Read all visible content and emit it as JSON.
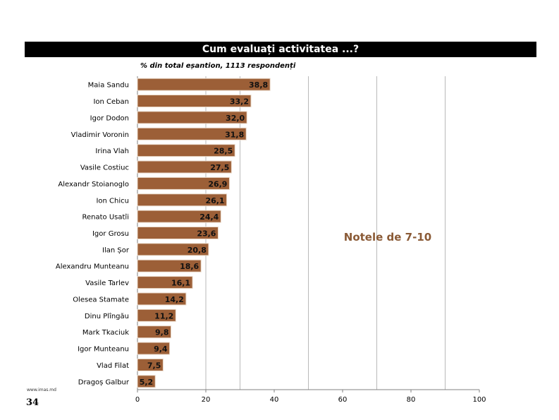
{
  "page": {
    "footer_url": "www.imas.md",
    "page_number": "34"
  },
  "chart_data": {
    "type": "bar",
    "orientation": "horizontal",
    "title": "Cum evaluați activitatea ...?",
    "subtitle": "% din total eșantion, 1113 respondenți",
    "annotation": "Notele de 7-10",
    "categories": [
      "Maia Sandu",
      "Ion Ceban",
      "Igor Dodon",
      "Vladimir Voronin",
      "Irina Vlah",
      "Vasile Costiuc",
      "Alexandr Stoianoglo",
      "Ion Chicu",
      "Renato Usatîi",
      "Igor Grosu",
      "Ilan Șor",
      "Alexandru Munteanu",
      "Vasile Tarlev",
      "Olesea Stamate",
      "Dinu Plîngău",
      "Mark Tkaciuk",
      "Igor Munteanu",
      "Vlad Filat",
      "Dragoș Galbur"
    ],
    "values": [
      38.8,
      33.2,
      32.0,
      31.8,
      28.5,
      27.5,
      26.9,
      26.1,
      24.4,
      23.6,
      20.8,
      18.6,
      16.1,
      14.2,
      11.2,
      9.8,
      9.4,
      7.5,
      5.2
    ],
    "value_labels": [
      "38,8",
      "33,2",
      "32,0",
      "31,8",
      "28,5",
      "27,5",
      "26,9",
      "26,1",
      "24,4",
      "23,6",
      "20,8",
      "18,6",
      "16,1",
      "14,2",
      "11,2",
      "9,8",
      "9,4",
      "7,5",
      "5,2"
    ],
    "xlim": [
      0,
      100
    ],
    "xticks": [
      0,
      20,
      40,
      60,
      80,
      100
    ],
    "grid": true,
    "legend": "none",
    "colors": {
      "bar": "#9c5f37",
      "bar_border": "#e9d8c8",
      "annotation": "#8a5a36",
      "grid": "#a8a8a8"
    }
  }
}
